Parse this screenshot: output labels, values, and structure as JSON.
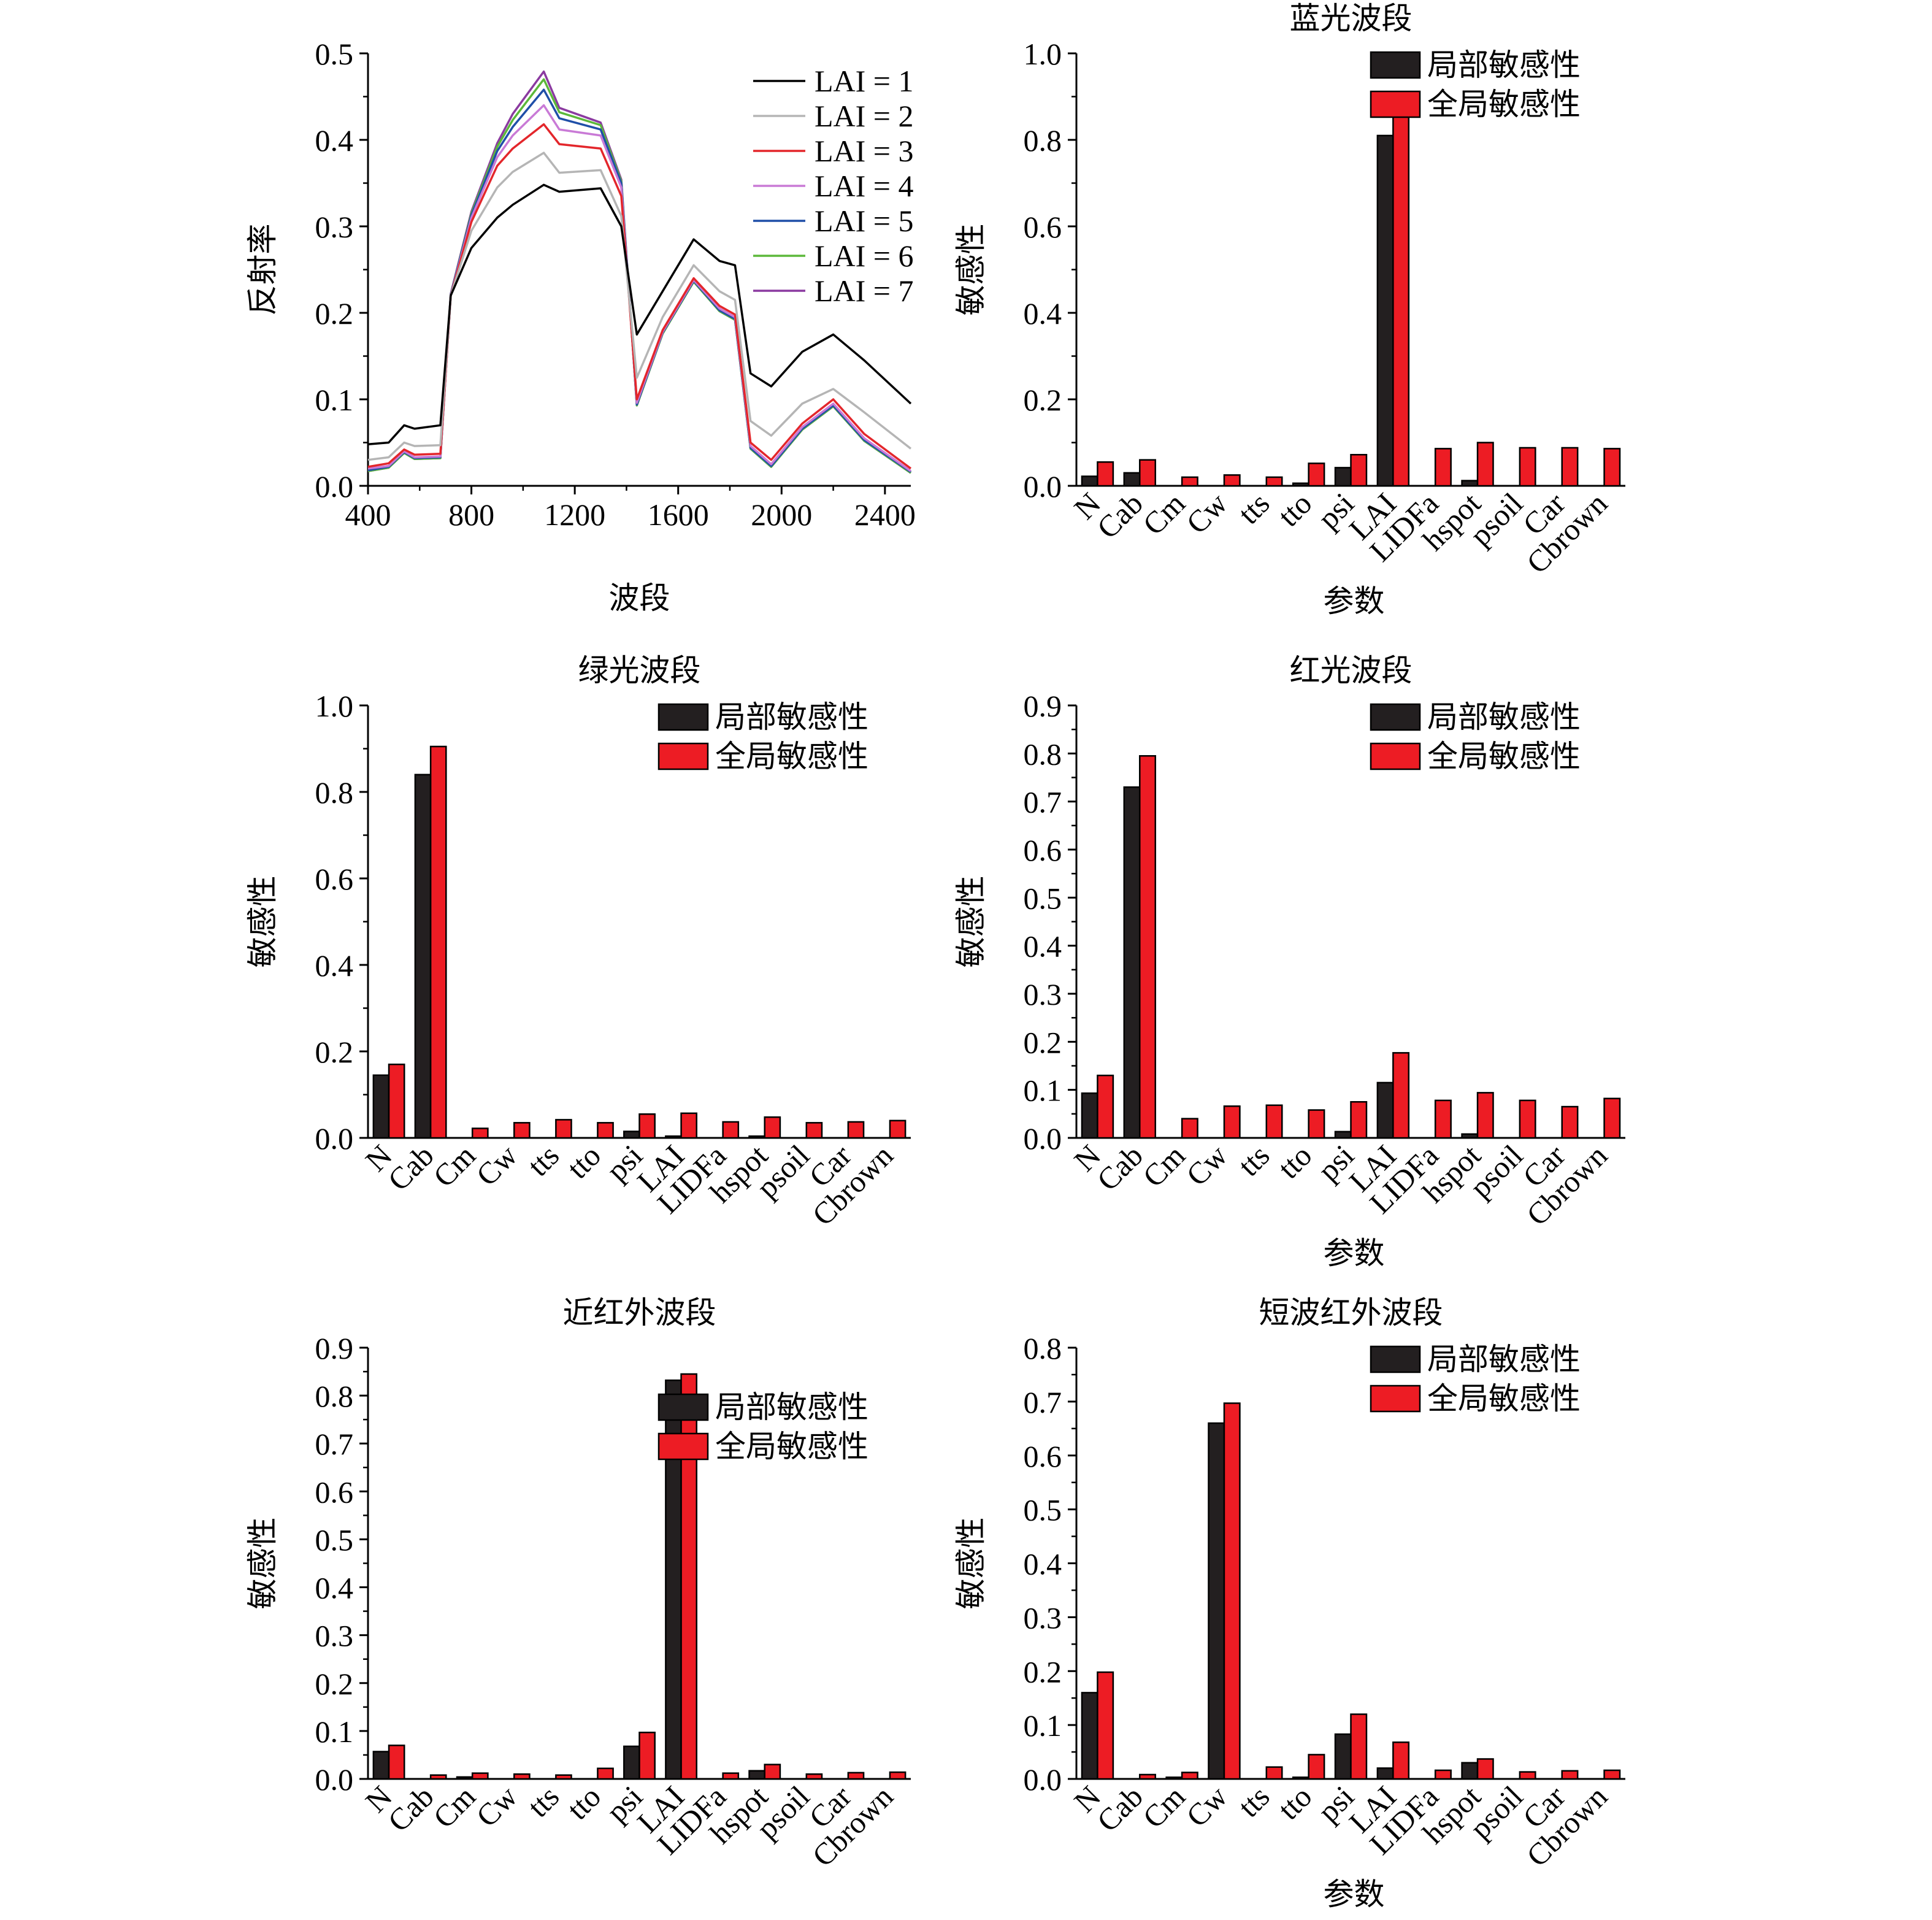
{
  "figure": {
    "legend_local": "局部敏感性",
    "legend_global": "全局敏感性",
    "color_local": "#231f20",
    "color_global": "#ed1c24"
  },
  "chart_data": [
    {
      "type": "line",
      "title": "",
      "xlabel": "波段",
      "ylabel": "反射率",
      "xlim": [
        400,
        2500
      ],
      "ylim": [
        0,
        0.5
      ],
      "xticks": [
        400,
        800,
        1200,
        1600,
        2000,
        2400
      ],
      "yticks": [
        0.0,
        0.1,
        0.2,
        0.3,
        0.4,
        0.5
      ],
      "x": [
        400,
        480,
        540,
        580,
        680,
        720,
        800,
        900,
        960,
        1080,
        1140,
        1300,
        1380,
        1440,
        1540,
        1660,
        1760,
        1820,
        1880,
        1960,
        2080,
        2200,
        2320,
        2500
      ],
      "series": [
        {
          "name": "LAI = 1",
          "color": "#000000",
          "values": [
            0.048,
            0.05,
            0.07,
            0.066,
            0.07,
            0.22,
            0.275,
            0.31,
            0.325,
            0.348,
            0.34,
            0.344,
            0.3,
            0.175,
            0.225,
            0.285,
            0.26,
            0.255,
            0.13,
            0.115,
            0.155,
            0.175,
            0.145,
            0.095
          ]
        },
        {
          "name": "LAI = 2",
          "color": "#b5b5b5",
          "values": [
            0.03,
            0.033,
            0.05,
            0.046,
            0.047,
            0.22,
            0.295,
            0.345,
            0.363,
            0.385,
            0.362,
            0.365,
            0.312,
            0.125,
            0.195,
            0.255,
            0.225,
            0.215,
            0.075,
            0.058,
            0.095,
            0.112,
            0.085,
            0.043
          ]
        },
        {
          "name": "LAI = 3",
          "color": "#e3262b",
          "values": [
            0.022,
            0.026,
            0.042,
            0.036,
            0.037,
            0.22,
            0.305,
            0.37,
            0.39,
            0.418,
            0.395,
            0.39,
            0.335,
            0.1,
            0.18,
            0.24,
            0.208,
            0.198,
            0.05,
            0.03,
            0.072,
            0.1,
            0.06,
            0.02
          ]
        },
        {
          "name": "LAI = 4",
          "color": "#c97ad6",
          "values": [
            0.02,
            0.023,
            0.04,
            0.033,
            0.034,
            0.22,
            0.31,
            0.38,
            0.405,
            0.44,
            0.412,
            0.405,
            0.345,
            0.096,
            0.178,
            0.238,
            0.205,
            0.195,
            0.046,
            0.025,
            0.068,
            0.095,
            0.055,
            0.017
          ]
        },
        {
          "name": "LAI = 5",
          "color": "#1f4fa8",
          "values": [
            0.018,
            0.022,
            0.039,
            0.032,
            0.033,
            0.221,
            0.313,
            0.387,
            0.415,
            0.458,
            0.425,
            0.412,
            0.35,
            0.094,
            0.177,
            0.237,
            0.203,
            0.193,
            0.044,
            0.023,
            0.066,
            0.093,
            0.053,
            0.016
          ]
        },
        {
          "name": "LAI = 6",
          "color": "#5cb83a",
          "values": [
            0.017,
            0.021,
            0.038,
            0.031,
            0.032,
            0.221,
            0.315,
            0.392,
            0.423,
            0.47,
            0.432,
            0.417,
            0.352,
            0.093,
            0.176,
            0.236,
            0.202,
            0.192,
            0.043,
            0.022,
            0.065,
            0.092,
            0.052,
            0.015
          ]
        },
        {
          "name": "LAI = 7",
          "color": "#8b3aa0",
          "values": [
            0.017,
            0.021,
            0.038,
            0.031,
            0.032,
            0.222,
            0.317,
            0.396,
            0.43,
            0.479,
            0.437,
            0.42,
            0.354,
            0.093,
            0.176,
            0.236,
            0.202,
            0.192,
            0.043,
            0.022,
            0.065,
            0.092,
            0.052,
            0.015
          ]
        }
      ]
    },
    {
      "type": "bar",
      "title": "蓝光波段",
      "xlabel": "参数",
      "ylabel": "敏感性",
      "ylim": [
        0,
        1.0
      ],
      "yticks": [
        0.0,
        0.2,
        0.4,
        0.6,
        0.8,
        1.0
      ],
      "categories": [
        "N",
        "Cab",
        "Cm",
        "Cw",
        "tts",
        "tto",
        "psi",
        "LAI",
        "LIDFa",
        "hspot",
        "psoil",
        "Car",
        "Cbrown"
      ],
      "series": [
        {
          "name": "局部敏感性",
          "values": [
            0.022,
            0.03,
            0.0,
            0.0,
            0.0,
            0.006,
            0.042,
            0.81,
            0.0,
            0.012,
            0.0,
            0.0,
            0.0
          ]
        },
        {
          "name": "全局敏感性",
          "values": [
            0.055,
            0.06,
            0.02,
            0.025,
            0.02,
            0.052,
            0.072,
            0.89,
            0.086,
            0.1,
            0.088,
            0.088,
            0.086
          ]
        }
      ]
    },
    {
      "type": "bar",
      "title": "绿光波段",
      "xlabel": "",
      "ylabel": "敏感性",
      "ylim": [
        0,
        1.0
      ],
      "yticks": [
        0.0,
        0.2,
        0.4,
        0.6,
        0.8,
        1.0
      ],
      "categories": [
        "N",
        "Cab",
        "Cm",
        "Cw",
        "tts",
        "tto",
        "psi",
        "LAI",
        "LIDFa",
        "hspot",
        "psoil",
        "Car",
        "Cbrown"
      ],
      "series": [
        {
          "name": "局部敏感性",
          "values": [
            0.145,
            0.84,
            0.0,
            0.0,
            0.0,
            0.0,
            0.015,
            0.004,
            0.0,
            0.004,
            0.0,
            0.0,
            0.0
          ]
        },
        {
          "name": "全局敏感性",
          "values": [
            0.17,
            0.905,
            0.022,
            0.035,
            0.042,
            0.035,
            0.055,
            0.057,
            0.037,
            0.048,
            0.035,
            0.037,
            0.04
          ]
        }
      ]
    },
    {
      "type": "bar",
      "title": "红光波段",
      "xlabel": "参数",
      "ylabel": "敏感性",
      "ylim": [
        0,
        0.9
      ],
      "yticks": [
        0.0,
        0.1,
        0.2,
        0.3,
        0.4,
        0.5,
        0.6,
        0.7,
        0.8,
        0.9
      ],
      "categories": [
        "N",
        "Cab",
        "Cm",
        "Cw",
        "tts",
        "tto",
        "psi",
        "LAI",
        "LIDFa",
        "hspot",
        "psoil",
        "Car",
        "Cbrown"
      ],
      "series": [
        {
          "name": "局部敏感性",
          "values": [
            0.093,
            0.73,
            0.0,
            0.0,
            0.0,
            0.0,
            0.013,
            0.115,
            0.0,
            0.008,
            0.0,
            0.0,
            0.0
          ]
        },
        {
          "name": "全局敏感性",
          "values": [
            0.13,
            0.795,
            0.04,
            0.066,
            0.068,
            0.058,
            0.075,
            0.177,
            0.078,
            0.094,
            0.078,
            0.065,
            0.082
          ]
        }
      ]
    },
    {
      "type": "bar",
      "title": "近红外波段",
      "xlabel": "",
      "ylabel": "敏感性",
      "ylim": [
        0,
        0.9
      ],
      "yticks": [
        0.0,
        0.1,
        0.2,
        0.3,
        0.4,
        0.5,
        0.6,
        0.7,
        0.8,
        0.9
      ],
      "categories": [
        "N",
        "Cab",
        "Cm",
        "Cw",
        "tts",
        "tto",
        "psi",
        "LAI",
        "LIDFa",
        "hspot",
        "psoil",
        "Car",
        "Cbrown"
      ],
      "series": [
        {
          "name": "局部敏感性",
          "values": [
            0.057,
            0.0,
            0.004,
            0.0,
            0.0,
            0.0,
            0.068,
            0.832,
            0.0,
            0.017,
            0.0,
            0.0,
            0.0
          ]
        },
        {
          "name": "全局敏感性",
          "values": [
            0.07,
            0.008,
            0.012,
            0.01,
            0.008,
            0.022,
            0.097,
            0.845,
            0.012,
            0.03,
            0.01,
            0.013,
            0.014
          ]
        }
      ]
    },
    {
      "type": "bar",
      "title": "短波红外波段",
      "xlabel": "参数",
      "ylabel": "敏感性",
      "ylim": [
        0,
        0.8
      ],
      "yticks": [
        0.0,
        0.1,
        0.2,
        0.3,
        0.4,
        0.5,
        0.6,
        0.7,
        0.8
      ],
      "categories": [
        "N",
        "Cab",
        "Cm",
        "Cw",
        "tts",
        "tto",
        "psi",
        "LAI",
        "LIDFa",
        "hspot",
        "psoil",
        "Car",
        "Cbrown"
      ],
      "series": [
        {
          "name": "局部敏感性",
          "values": [
            0.16,
            0.0,
            0.003,
            0.66,
            0.0,
            0.003,
            0.083,
            0.02,
            0.0,
            0.03,
            0.0,
            0.0,
            0.0
          ]
        },
        {
          "name": "全局敏感性",
          "values": [
            0.198,
            0.008,
            0.012,
            0.697,
            0.022,
            0.045,
            0.12,
            0.068,
            0.016,
            0.037,
            0.013,
            0.015,
            0.016
          ]
        }
      ]
    }
  ]
}
